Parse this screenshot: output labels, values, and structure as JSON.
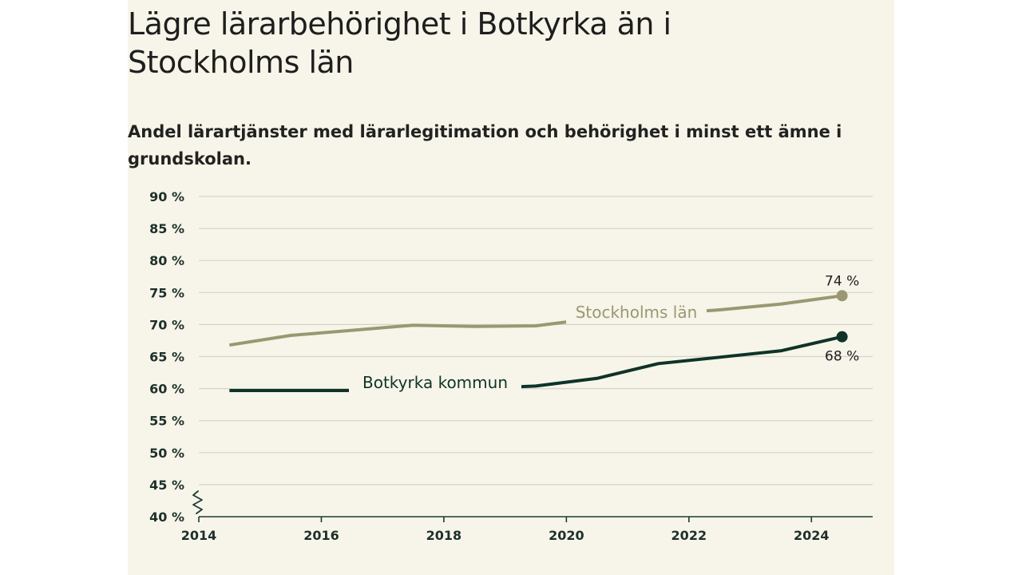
{
  "chart_data": {
    "type": "line",
    "title": "Lägre lärarbehörighet i Botkyrka än i Stockholms län",
    "subtitle": "Andel lärartjänster med lärarlegitimation och behörighet i minst ett ämne i grundskolan.",
    "xlabel": "",
    "ylabel": "",
    "xlim": [
      2014,
      2025
    ],
    "ylim": [
      40,
      90
    ],
    "x_ticks": [
      2014,
      2016,
      2018,
      2020,
      2022,
      2024
    ],
    "x_tick_labels": [
      "2014",
      "2016",
      "2018",
      "2020",
      "2022",
      "2024"
    ],
    "y_ticks": [
      40,
      45,
      50,
      55,
      60,
      65,
      70,
      75,
      80,
      85,
      90
    ],
    "y_tick_labels": [
      "40 %",
      "45 %",
      "50 %",
      "55 %",
      "60 %",
      "65 %",
      "70 %",
      "75 %",
      "80 %",
      "85 %",
      "90 %"
    ],
    "grid": true,
    "axis_break": true,
    "series": [
      {
        "name": "Stockholms län",
        "color": "#9a9872",
        "x": [
          2014.5,
          2015.5,
          2016.5,
          2017.5,
          2018.5,
          2019.5,
          2020.5,
          2021.5,
          2022.5,
          2023.5,
          2024.5
        ],
        "values": [
          66.8,
          68.3,
          69.1,
          69.9,
          69.7,
          69.8,
          71.0,
          71.6,
          72.3,
          73.2,
          74.5
        ],
        "end_label": "74 %"
      },
      {
        "name": "Botkyrka kommun",
        "color": "#0f3328",
        "x": [
          2014.5,
          2015.5,
          2016.5,
          2017.5,
          2018.5,
          2019.5,
          2020.5,
          2021.5,
          2022.5,
          2023.5,
          2024.5
        ],
        "values": [
          59.7,
          59.7,
          59.7,
          60.0,
          60.0,
          60.4,
          61.6,
          63.9,
          64.9,
          65.9,
          68.1
        ],
        "end_label": "68 %"
      }
    ]
  }
}
